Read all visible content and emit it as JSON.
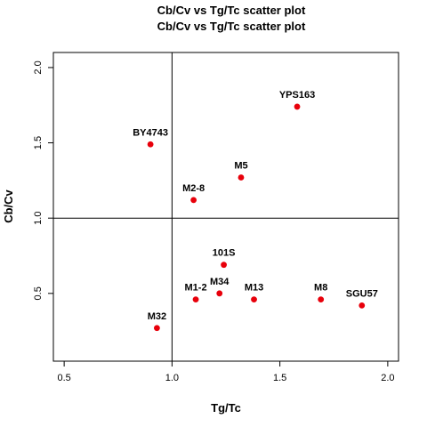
{
  "chart_data": {
    "type": "scatter",
    "title": "Cb/Cv vs Tg/Tc scatter plot",
    "subtitle": "Cb/Cv vs Tg/Tc scatter plot",
    "xlabel": "Tg/Tc",
    "ylabel": "Cb/Cv",
    "xlim": [
      0.45,
      2.05
    ],
    "ylim": [
      0.05,
      2.1
    ],
    "xticks": [
      0.5,
      1.0,
      1.5,
      2.0
    ],
    "xtick_labels": [
      "0.5",
      "1.0",
      "1.5",
      "2.0"
    ],
    "yticks": [
      0.5,
      1.0,
      1.5,
      2.0
    ],
    "ytick_labels": [
      "0.5",
      "1.0",
      "1.5",
      "2.0"
    ],
    "reference_lines": {
      "x": 1.0,
      "y": 1.0
    },
    "grid": false,
    "point_color": "#e8000b",
    "points": [
      {
        "label": "YPS163",
        "x": 1.58,
        "y": 1.74
      },
      {
        "label": "BY4743",
        "x": 0.9,
        "y": 1.49
      },
      {
        "label": "M5",
        "x": 1.32,
        "y": 1.27
      },
      {
        "label": "M2-8",
        "x": 1.1,
        "y": 1.12
      },
      {
        "label": "101S",
        "x": 1.24,
        "y": 0.69
      },
      {
        "label": "M1-2",
        "x": 1.11,
        "y": 0.46
      },
      {
        "label": "M34",
        "x": 1.22,
        "y": 0.5
      },
      {
        "label": "M13",
        "x": 1.38,
        "y": 0.46
      },
      {
        "label": "M8",
        "x": 1.69,
        "y": 0.46
      },
      {
        "label": "SGU57",
        "x": 1.88,
        "y": 0.42
      },
      {
        "label": "M32",
        "x": 0.93,
        "y": 0.27
      }
    ]
  }
}
